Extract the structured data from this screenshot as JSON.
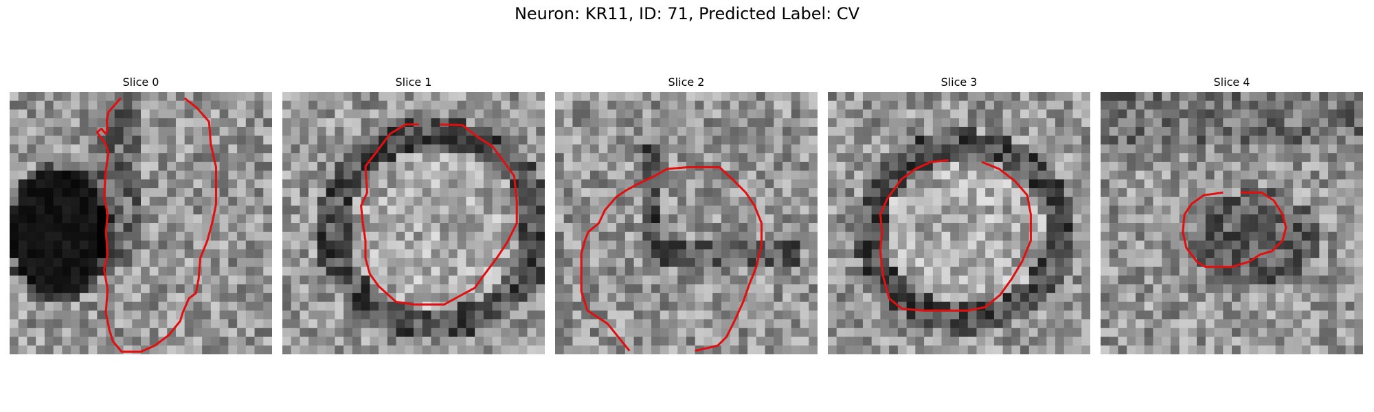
{
  "figure": {
    "title": "Neuron: KR11, ID: 71, Predicted Label: CV"
  },
  "contour_color": "#e01010",
  "panels": [
    {
      "label": "Slice 0",
      "seed": 11,
      "darkBlob": true,
      "contour": [
        [
          127,
          7
        ],
        [
          113,
          23
        ],
        [
          111,
          33
        ],
        [
          112,
          42
        ],
        [
          110,
          48
        ],
        [
          105,
          42
        ],
        [
          100,
          46
        ],
        [
          110,
          60
        ],
        [
          113,
          70
        ],
        [
          110,
          90
        ],
        [
          108,
          118
        ],
        [
          112,
          140
        ],
        [
          110,
          160
        ],
        [
          112,
          186
        ],
        [
          108,
          203
        ],
        [
          112,
          226
        ],
        [
          110,
          252
        ],
        [
          114,
          272
        ],
        [
          118,
          285
        ],
        [
          128,
          297
        ],
        [
          150,
          297
        ],
        [
          166,
          290
        ],
        [
          182,
          278
        ],
        [
          195,
          262
        ],
        [
          198,
          252
        ],
        [
          205,
          236
        ],
        [
          213,
          230
        ],
        [
          216,
          214
        ],
        [
          218,
          190
        ],
        [
          226,
          170
        ],
        [
          232,
          148
        ],
        [
          236,
          128
        ],
        [
          236,
          86
        ],
        [
          230,
          60
        ],
        [
          228,
          34
        ],
        [
          214,
          18
        ],
        [
          200,
          7
        ]
      ]
    },
    {
      "label": "Slice 1",
      "seed": 23,
      "ring": [
        175,
        157,
        118,
        108
      ],
      "contour": [
        [
          156,
          37
        ],
        [
          141,
          37
        ],
        [
          123,
          48
        ],
        [
          108,
          68
        ],
        [
          95,
          85
        ],
        [
          96,
          102
        ],
        [
          97,
          115
        ],
        [
          90,
          130
        ],
        [
          92,
          150
        ],
        [
          95,
          170
        ],
        [
          95,
          190
        ],
        [
          100,
          208
        ],
        [
          110,
          222
        ],
        [
          130,
          240
        ],
        [
          150,
          243
        ],
        [
          185,
          243
        ],
        [
          205,
          232
        ],
        [
          220,
          224
        ],
        [
          230,
          210
        ],
        [
          245,
          190
        ],
        [
          257,
          172
        ],
        [
          268,
          150
        ],
        [
          268,
          125
        ],
        [
          265,
          96
        ],
        [
          252,
          78
        ],
        [
          240,
          62
        ],
        [
          224,
          52
        ],
        [
          206,
          38
        ],
        [
          180,
          37
        ]
      ]
    },
    {
      "label": "Slice 2",
      "seed": 37,
      "cross": true,
      "contour": [
        [
          85,
          296
        ],
        [
          60,
          265
        ],
        [
          37,
          250
        ],
        [
          30,
          228
        ],
        [
          30,
          185
        ],
        [
          34,
          170
        ],
        [
          38,
          160
        ],
        [
          50,
          150
        ],
        [
          57,
          135
        ],
        [
          70,
          120
        ],
        [
          82,
          112
        ],
        [
          95,
          105
        ],
        [
          112,
          97
        ],
        [
          128,
          88
        ],
        [
          152,
          86
        ],
        [
          188,
          86
        ],
        [
          205,
          102
        ],
        [
          218,
          115
        ],
        [
          228,
          130
        ],
        [
          236,
          150
        ],
        [
          236,
          175
        ],
        [
          230,
          200
        ],
        [
          222,
          220
        ],
        [
          215,
          240
        ],
        [
          205,
          262
        ],
        [
          196,
          280
        ],
        [
          186,
          290
        ],
        [
          160,
          296
        ]
      ]
    },
    {
      "label": "Slice 3",
      "seed": 53,
      "ring": [
        157,
        160,
        108,
        100
      ],
      "contour": [
        [
          138,
          78
        ],
        [
          118,
          80
        ],
        [
          100,
          88
        ],
        [
          84,
          100
        ],
        [
          68,
          122
        ],
        [
          60,
          140
        ],
        [
          62,
          160
        ],
        [
          60,
          182
        ],
        [
          63,
          210
        ],
        [
          70,
          236
        ],
        [
          85,
          248
        ],
        [
          110,
          250
        ],
        [
          160,
          250
        ],
        [
          180,
          246
        ],
        [
          197,
          232
        ],
        [
          210,
          214
        ],
        [
          222,
          194
        ],
        [
          232,
          170
        ],
        [
          232,
          140
        ],
        [
          228,
          118
        ],
        [
          214,
          102
        ],
        [
          196,
          88
        ],
        [
          176,
          80
        ]
      ]
    },
    {
      "label": "Slice 4",
      "seed": 71,
      "darkCore": [
        178,
        168,
        75,
        55
      ],
      "contour": [
        [
          140,
          115
        ],
        [
          118,
          118
        ],
        [
          104,
          128
        ],
        [
          96,
          140
        ],
        [
          94,
          160
        ],
        [
          98,
          178
        ],
        [
          110,
          194
        ],
        [
          120,
          200
        ],
        [
          150,
          200
        ],
        [
          170,
          194
        ],
        [
          182,
          186
        ],
        [
          196,
          182
        ],
        [
          208,
          170
        ],
        [
          212,
          155
        ],
        [
          208,
          140
        ],
        [
          198,
          124
        ],
        [
          184,
          115
        ],
        [
          160,
          115
        ]
      ]
    }
  ]
}
